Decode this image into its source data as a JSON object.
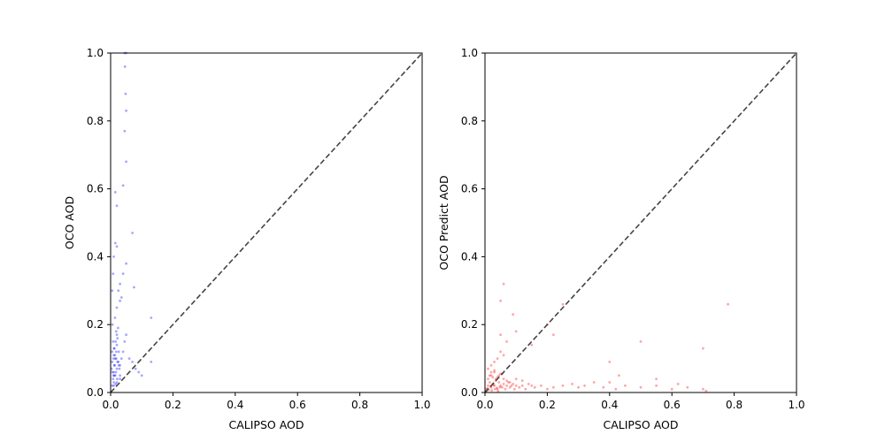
{
  "chart_data": [
    {
      "type": "scatter",
      "title": "",
      "xlabel": "CALIPSO AOD",
      "ylabel": "OCO AOD",
      "xlim": [
        0,
        1
      ],
      "ylim": [
        0,
        1
      ],
      "xticks": [
        "0.0",
        "0.2",
        "0.4",
        "0.6",
        "0.8",
        "1.0"
      ],
      "yticks": [
        "0.0",
        "0.2",
        "0.4",
        "0.6",
        "0.8",
        "1.0"
      ],
      "grid": false,
      "marker_color": "#0000ff",
      "marker_alpha": 0.15,
      "reference_line": {
        "x": [
          0,
          1
        ],
        "y": [
          0,
          1
        ],
        "style": "dashed",
        "color": "#444444"
      },
      "points": {
        "x": [
          0.005,
          0.008,
          0.01,
          0.012,
          0.015,
          0.018,
          0.02,
          0.022,
          0.025,
          0.028,
          0.03,
          0.01,
          0.012,
          0.016,
          0.02,
          0.024,
          0.006,
          0.014,
          0.018,
          0.026,
          0.01,
          0.015,
          0.02,
          0.005,
          0.009,
          0.013,
          0.017,
          0.021,
          0.03,
          0.035,
          0.04,
          0.045,
          0.05,
          0.06,
          0.07,
          0.08,
          0.09,
          0.1,
          0.13,
          0.13,
          0.02,
          0.025,
          0.03,
          0.04,
          0.05,
          0.005,
          0.008,
          0.01,
          0.015,
          0.02,
          0.04,
          0.05,
          0.045,
          0.05,
          0.048,
          0.046,
          0.05,
          0.045,
          0.02,
          0.015,
          0.07,
          0.075,
          0.035,
          0.03,
          0.01,
          0.02,
          0.012,
          0.016,
          0.03,
          0.005,
          0.008,
          0.011,
          0.014,
          0.018,
          0.022,
          0.026,
          0.003,
          0.006,
          0.009
        ],
        "y": [
          0.02,
          0.04,
          0.06,
          0.08,
          0.1,
          0.12,
          0.14,
          0.16,
          0.09,
          0.07,
          0.05,
          0.11,
          0.13,
          0.15,
          0.17,
          0.19,
          0.2,
          0.22,
          0.18,
          0.12,
          0.03,
          0.05,
          0.07,
          0.09,
          0.1,
          0.08,
          0.06,
          0.04,
          0.08,
          0.1,
          0.12,
          0.15,
          0.17,
          0.1,
          0.09,
          0.07,
          0.06,
          0.05,
          0.09,
          0.22,
          0.25,
          0.3,
          0.32,
          0.35,
          0.38,
          0.3,
          0.35,
          0.4,
          0.44,
          0.55,
          0.61,
          0.68,
          0.77,
          0.83,
          0.88,
          0.96,
          1.0,
          1.0,
          0.43,
          0.59,
          0.47,
          0.31,
          0.28,
          0.27,
          0.02,
          0.03,
          0.05,
          0.025,
          0.04,
          0.12,
          0.15,
          0.13,
          0.11,
          0.1,
          0.09,
          0.08,
          0.07,
          0.06,
          0.05
        ]
      }
    },
    {
      "type": "scatter",
      "title": "",
      "xlabel": "CALIPSO AOD",
      "ylabel": "OCO Predict AOD",
      "xlim": [
        0,
        1
      ],
      "ylim": [
        0,
        1
      ],
      "xticks": [
        "0.0",
        "0.2",
        "0.4",
        "0.6",
        "0.8",
        "1.0"
      ],
      "yticks": [
        "0.0",
        "0.2",
        "0.4",
        "0.6",
        "0.8",
        "1.0"
      ],
      "grid": false,
      "marker_color": "#ff0000",
      "marker_alpha": 0.15,
      "reference_line": {
        "x": [
          0,
          1
        ],
        "y": [
          0,
          1
        ],
        "style": "dashed",
        "color": "#444444"
      },
      "points": {
        "x": [
          0.005,
          0.01,
          0.015,
          0.02,
          0.025,
          0.03,
          0.035,
          0.04,
          0.045,
          0.05,
          0.055,
          0.06,
          0.065,
          0.07,
          0.075,
          0.08,
          0.085,
          0.09,
          0.095,
          0.1,
          0.11,
          0.12,
          0.13,
          0.14,
          0.15,
          0.16,
          0.18,
          0.2,
          0.22,
          0.25,
          0.28,
          0.3,
          0.32,
          0.35,
          0.38,
          0.4,
          0.42,
          0.45,
          0.5,
          0.55,
          0.6,
          0.62,
          0.65,
          0.7,
          0.71,
          0.78,
          0.01,
          0.02,
          0.03,
          0.04,
          0.05,
          0.06,
          0.07,
          0.08,
          0.01,
          0.02,
          0.03,
          0.04,
          0.05,
          0.06,
          0.015,
          0.025,
          0.035,
          0.045,
          0.055,
          0.05,
          0.07,
          0.09,
          0.1,
          0.15,
          0.2,
          0.05,
          0.06,
          0.25,
          0.22,
          0.02,
          0.03,
          0.1,
          0.12,
          0.4,
          0.43,
          0.5,
          0.55,
          0.7,
          0.005,
          0.008,
          0.012,
          0.018,
          0.022,
          0.028,
          0.032,
          0.038,
          0.042,
          0.048
        ],
        "y": [
          0.01,
          0.02,
          0.03,
          0.015,
          0.025,
          0.02,
          0.035,
          0.01,
          0.03,
          0.02,
          0.015,
          0.025,
          0.01,
          0.02,
          0.03,
          0.015,
          0.02,
          0.025,
          0.01,
          0.02,
          0.015,
          0.02,
          0.01,
          0.025,
          0.02,
          0.015,
          0.02,
          0.01,
          0.015,
          0.02,
          0.025,
          0.015,
          0.02,
          0.03,
          0.015,
          0.03,
          0.01,
          0.02,
          0.015,
          0.02,
          0.01,
          0.025,
          0.015,
          0.01,
          0.005,
          0.26,
          0.04,
          0.05,
          0.06,
          0.045,
          0.055,
          0.04,
          0.035,
          0.03,
          0.07,
          0.08,
          0.09,
          0.1,
          0.12,
          0.11,
          0.05,
          0.045,
          0.04,
          0.05,
          0.055,
          0.17,
          0.15,
          0.23,
          0.18,
          0.14,
          0.2,
          0.27,
          0.32,
          0.26,
          0.17,
          0.06,
          0.065,
          0.04,
          0.035,
          0.09,
          0.05,
          0.15,
          0.04,
          0.13,
          0.005,
          0.012,
          0.008,
          0.018,
          0.006,
          0.022,
          0.01,
          0.014,
          0.004,
          0.016
        ]
      }
    }
  ]
}
